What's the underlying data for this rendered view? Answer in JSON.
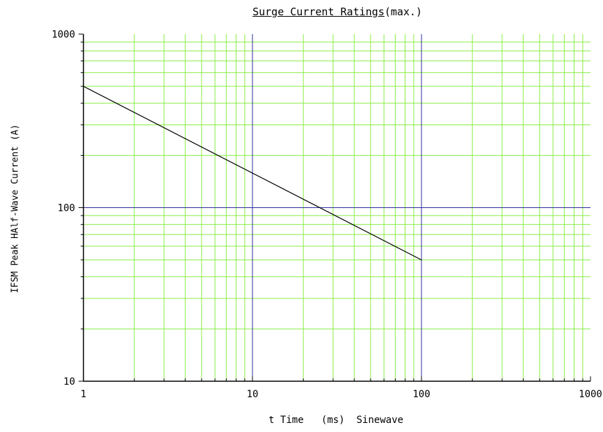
{
  "chart_data": {
    "type": "line",
    "title": "Surge Current Ratings",
    "title_suffix": "(max.)",
    "xlabel": "t Time   (ms)  Sinewave",
    "ylabel": "IFSM Peak HAlf-Wave Current (A)",
    "x_scale": "log",
    "y_scale": "log",
    "xlim": [
      1,
      1000
    ],
    "ylim": [
      10,
      1000
    ],
    "x_ticks": [
      "1",
      "10",
      "100",
      "1000"
    ],
    "y_ticks": [
      "1000",
      "100",
      "10"
    ],
    "grid": true,
    "colors": {
      "minor_grid": "#88ee44",
      "major_grid": "#2c2c9a",
      "line": "#000000"
    },
    "series": [
      {
        "x": [
          1,
          100
        ],
        "y": [
          500,
          50
        ]
      }
    ]
  }
}
